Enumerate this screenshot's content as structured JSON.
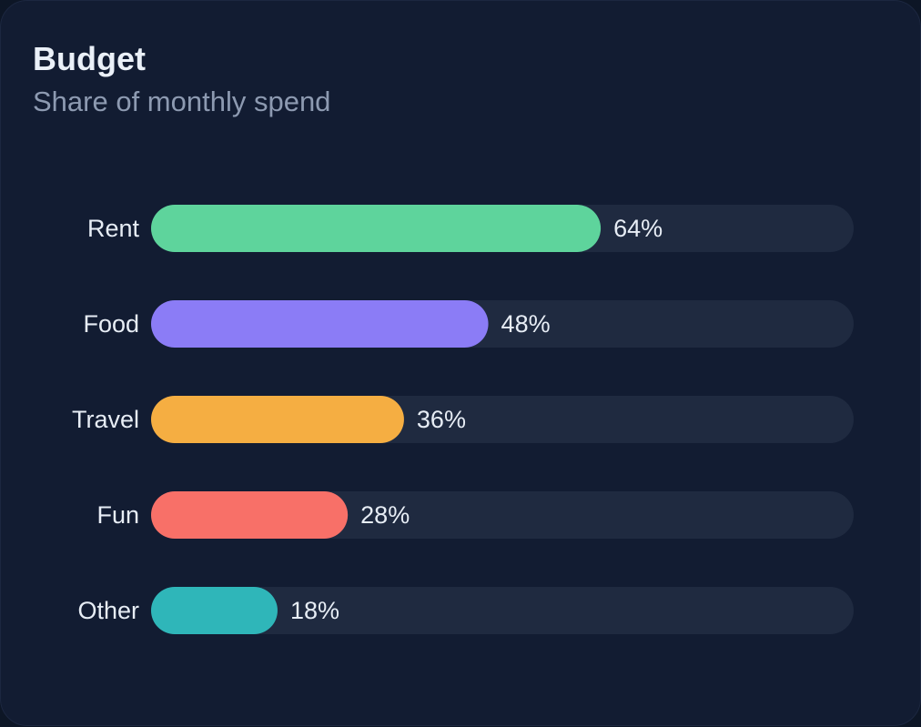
{
  "card": {
    "title": "Budget",
    "subtitle": "Share of monthly spend"
  },
  "colors": {
    "background": "#121c32",
    "track": "#1f2a40",
    "text": "#e7edf5",
    "muted": "#8d9ab1"
  },
  "chart_data": {
    "type": "bar",
    "orientation": "horizontal",
    "title": "Budget",
    "subtitle": "Share of monthly spend",
    "xlim": [
      0,
      100
    ],
    "unit": "%",
    "grid": false,
    "legend": "none",
    "categories": [
      "Rent",
      "Food",
      "Travel",
      "Fun",
      "Other"
    ],
    "values": [
      64,
      48,
      36,
      28,
      18
    ],
    "value_labels": [
      "64%",
      "48%",
      "36%",
      "28%",
      "18%"
    ],
    "colors": [
      "#5ed49c",
      "#8b7cf6",
      "#f5ae42",
      "#f87068",
      "#2fb6b9"
    ]
  }
}
